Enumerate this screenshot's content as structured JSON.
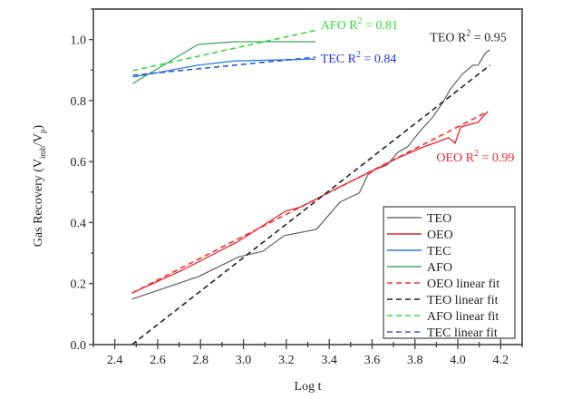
{
  "chart_data": {
    "type": "line",
    "title": "",
    "xlabel": "Log t",
    "ylabel": {
      "main": "Gas Recovery (V",
      "sub1": "imb",
      "mid": "/V",
      "sub2": "p",
      "end": ")"
    },
    "xlim": [
      2.3,
      4.3
    ],
    "ylim": [
      0.0,
      1.1
    ],
    "xticks": [
      2.4,
      2.6,
      2.8,
      3.0,
      3.2,
      3.4,
      3.6,
      3.8,
      4.0,
      4.2
    ],
    "xtick_labels": [
      "2.4",
      "2.6",
      "2.8",
      "3.0",
      "3.2",
      "3.4",
      "3.6",
      "3.8",
      "4.0",
      "4.2"
    ],
    "yticks": [
      0.0,
      0.2,
      0.4,
      0.6,
      0.8,
      1.0
    ],
    "ytick_labels": [
      "0.0",
      "0.2",
      "0.4",
      "0.6",
      "0.8",
      "1.0"
    ],
    "grid": false,
    "legend_position": "bottom-right",
    "series": [
      {
        "name": "TEO",
        "color": "#6b6b6b",
        "dash": false,
        "x": [
          2.48,
          2.79,
          2.98,
          3.09,
          3.19,
          3.34,
          3.45,
          3.54,
          3.58,
          3.615,
          3.67,
          3.72,
          3.765,
          3.83,
          3.88,
          3.93,
          3.966,
          4.02,
          4.07,
          4.094,
          4.13,
          4.15
        ],
        "y": [
          0.149,
          0.223,
          0.288,
          0.306,
          0.357,
          0.378,
          0.467,
          0.497,
          0.556,
          0.574,
          0.589,
          0.63,
          0.648,
          0.705,
          0.743,
          0.794,
          0.838,
          0.886,
          0.916,
          0.916,
          0.957,
          0.966
        ]
      },
      {
        "name": "OEO",
        "color": "#f0242a",
        "dash": false,
        "x": [
          2.48,
          2.715,
          2.97,
          3.195,
          3.27,
          3.44,
          3.615,
          3.73,
          3.84,
          3.9,
          3.957,
          3.987,
          4.013,
          4.056,
          4.094,
          4.12,
          4.14
        ],
        "y": [
          0.169,
          0.244,
          0.336,
          0.437,
          0.452,
          0.514,
          0.574,
          0.615,
          0.648,
          0.663,
          0.678,
          0.66,
          0.713,
          0.722,
          0.728,
          0.749,
          0.764
        ]
      },
      {
        "name": "TEC",
        "color": "#2f7de1",
        "dash": false,
        "x": [
          2.484,
          2.788,
          2.96,
          3.336
        ],
        "y": [
          0.877,
          0.916,
          0.93,
          0.936
        ]
      },
      {
        "name": "AFO",
        "color": "#3aa864",
        "dash": false,
        "x": [
          2.484,
          2.788,
          2.96,
          3.336
        ],
        "y": [
          0.856,
          0.984,
          0.993,
          0.993
        ]
      },
      {
        "name": "OEO linear fit",
        "color": "#ff2a2a",
        "dash": true,
        "x": [
          2.48,
          4.14
        ],
        "y": [
          0.169,
          0.764
        ]
      },
      {
        "name": "TEO linear fit",
        "color": "#222222",
        "dash": true,
        "x": [
          2.48,
          4.15
        ],
        "y": [
          0.0,
          0.916
        ]
      },
      {
        "name": "AFO linear fit",
        "color": "#33dd33",
        "dash": true,
        "x": [
          2.484,
          3.336
        ],
        "y": [
          0.898,
          1.03
        ]
      },
      {
        "name": "TEC linear fit",
        "color": "#3355ee",
        "dash": true,
        "x": [
          2.484,
          3.336
        ],
        "y": [
          0.883,
          0.942
        ]
      }
    ],
    "annotations": [
      {
        "id": "afo",
        "label": "AFO R",
        "sup": "2",
        "value": " = 0.81",
        "color": "#33dd33",
        "x": 3.36,
        "y": 1.035
      },
      {
        "id": "tec",
        "label": "TEC R",
        "sup": "2",
        "value": " = 0.84",
        "color": "#2233ee",
        "x": 3.36,
        "y": 0.925
      },
      {
        "id": "teo",
        "label": "TEO R",
        "sup": "2",
        "value": " = 0.95",
        "color": "#222222",
        "x": 3.87,
        "y": 0.995
      },
      {
        "id": "oeo",
        "label": "OEO R",
        "sup": "2",
        "value": " = 0.99",
        "color": "#f0242a",
        "x": 3.9,
        "y": 0.6
      }
    ]
  }
}
